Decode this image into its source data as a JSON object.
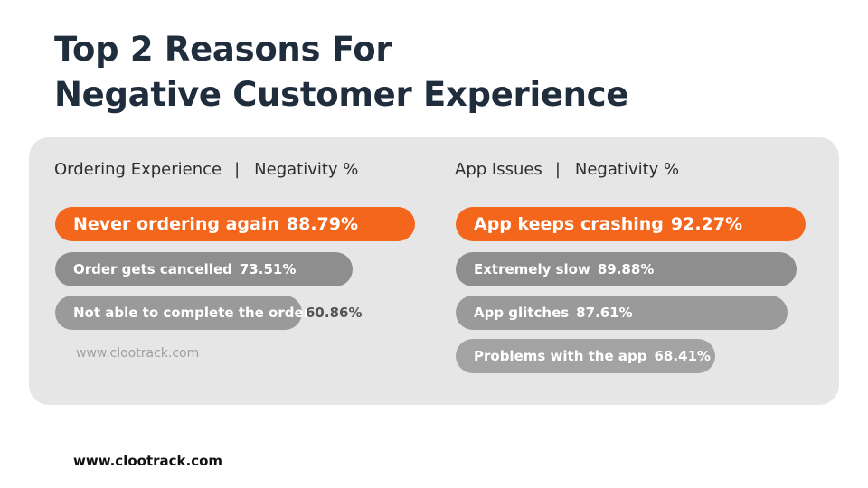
{
  "title": {
    "line1": "Top 2 Reasons For",
    "line2": "Negative Customer Experience"
  },
  "colors": {
    "top_bar": "#f4661b",
    "other_bar": "#8e8e8e",
    "panel": "#e6e6e6",
    "title": "#1f2d3d"
  },
  "watermark": "www.clootrack.com",
  "footer": "www.clootrack.com",
  "chart_data": [
    {
      "type": "bar",
      "orientation": "horizontal",
      "header": {
        "category": "Ordering Experience",
        "separator": "|",
        "metric": "Negativity %"
      },
      "categories": [
        "Never ordering again",
        "Order gets cancelled",
        "Not able to complete the order"
      ],
      "values": [
        88.79,
        73.51,
        60.86
      ],
      "value_labels": [
        "88.79%",
        "73.51%",
        "60.86%"
      ],
      "xlim": [
        0,
        100
      ]
    },
    {
      "type": "bar",
      "orientation": "horizontal",
      "header": {
        "category": "App Issues",
        "separator": "|",
        "metric": "Negativity %"
      },
      "categories": [
        "App keeps crashing",
        "Extremely slow",
        "App glitches",
        "Problems with the app"
      ],
      "values": [
        92.27,
        89.88,
        87.61,
        68.41
      ],
      "value_labels": [
        "92.27%",
        "89.88%",
        "87.61%",
        "68.41%"
      ],
      "xlim": [
        0,
        100
      ]
    }
  ]
}
